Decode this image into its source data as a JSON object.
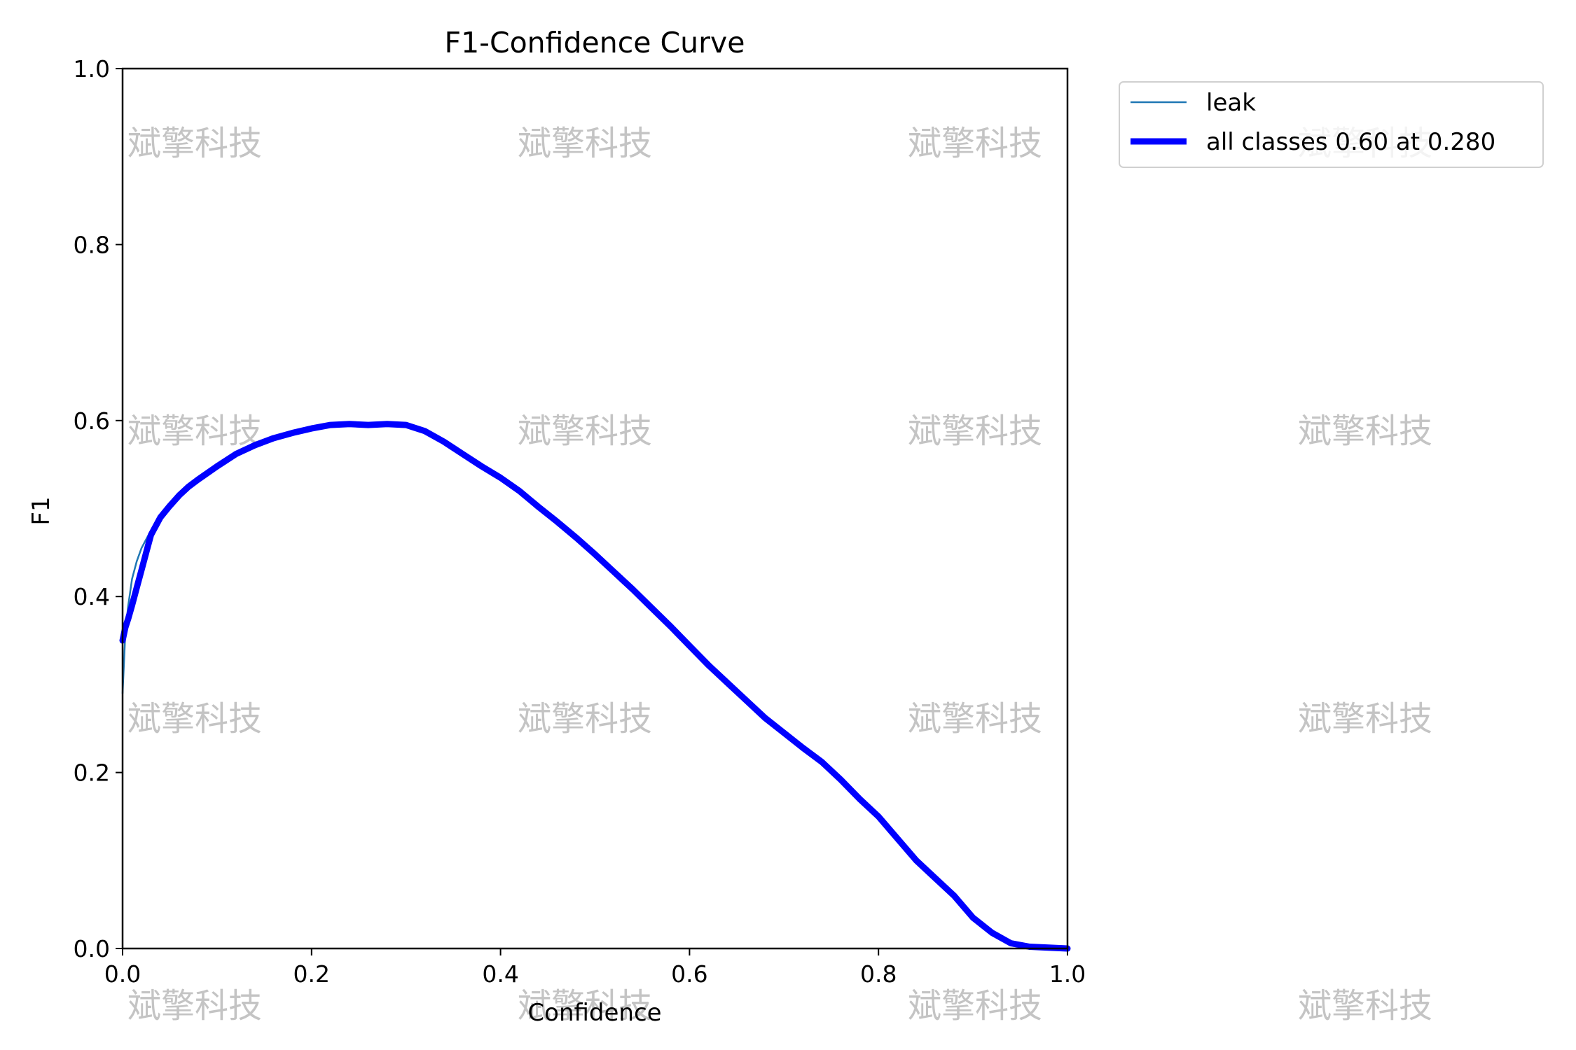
{
  "chart_data": {
    "type": "line",
    "title": "F1-Confidence Curve",
    "xlabel": "Confidence",
    "ylabel": "F1",
    "xlim": [
      0.0,
      1.0
    ],
    "ylim": [
      0.0,
      1.0
    ],
    "xticks": [
      "0.0",
      "0.2",
      "0.4",
      "0.6",
      "0.8",
      "1.0"
    ],
    "yticks": [
      "0.0",
      "0.2",
      "0.4",
      "0.6",
      "0.8",
      "1.0"
    ],
    "grid": false,
    "legend_position": "outside-top-right",
    "series": [
      {
        "name": "leak",
        "color": "#1f77b4",
        "x": [
          0.0,
          0.003,
          0.006,
          0.01,
          0.015,
          0.02,
          0.025,
          0.03,
          0.04,
          0.05,
          0.06,
          0.07,
          0.08,
          0.1,
          0.12,
          0.14,
          0.16,
          0.18,
          0.2,
          0.22,
          0.24,
          0.26,
          0.28,
          0.3,
          0.32,
          0.34,
          0.36,
          0.38,
          0.4,
          0.42,
          0.44,
          0.46,
          0.48,
          0.5,
          0.52,
          0.54,
          0.56,
          0.58,
          0.6,
          0.62,
          0.64,
          0.66,
          0.68,
          0.7,
          0.72,
          0.74,
          0.76,
          0.78,
          0.8,
          0.82,
          0.84,
          0.86,
          0.88,
          0.9,
          0.92,
          0.94,
          0.96,
          0.98,
          1.0
        ],
        "y": [
          0.29,
          0.36,
          0.39,
          0.42,
          0.44,
          0.455,
          0.465,
          0.475,
          0.49,
          0.505,
          0.515,
          0.525,
          0.533,
          0.548,
          0.562,
          0.572,
          0.58,
          0.586,
          0.591,
          0.595,
          0.596,
          0.595,
          0.596,
          0.595,
          0.588,
          0.576,
          0.562,
          0.548,
          0.535,
          0.52,
          0.502,
          0.485,
          0.467,
          0.448,
          0.428,
          0.408,
          0.387,
          0.366,
          0.344,
          0.322,
          0.302,
          0.282,
          0.262,
          0.245,
          0.228,
          0.212,
          0.192,
          0.17,
          0.15,
          0.125,
          0.1,
          0.08,
          0.06,
          0.035,
          0.018,
          0.006,
          0.002,
          0.001,
          0.0
        ]
      },
      {
        "name": "all classes 0.60 at 0.280",
        "color": "#0000ff",
        "x": [
          0.0,
          0.003,
          0.006,
          0.01,
          0.015,
          0.02,
          0.025,
          0.03,
          0.04,
          0.05,
          0.06,
          0.07,
          0.08,
          0.1,
          0.12,
          0.14,
          0.16,
          0.18,
          0.2,
          0.22,
          0.24,
          0.26,
          0.28,
          0.3,
          0.32,
          0.34,
          0.36,
          0.38,
          0.4,
          0.42,
          0.44,
          0.46,
          0.48,
          0.5,
          0.52,
          0.54,
          0.56,
          0.58,
          0.6,
          0.62,
          0.64,
          0.66,
          0.68,
          0.7,
          0.72,
          0.74,
          0.76,
          0.78,
          0.8,
          0.82,
          0.84,
          0.86,
          0.88,
          0.9,
          0.92,
          0.94,
          0.96,
          0.98,
          1.0
        ],
        "y": [
          0.35,
          0.365,
          0.375,
          0.39,
          0.41,
          0.43,
          0.45,
          0.47,
          0.49,
          0.503,
          0.515,
          0.525,
          0.533,
          0.548,
          0.562,
          0.572,
          0.58,
          0.586,
          0.591,
          0.595,
          0.596,
          0.595,
          0.596,
          0.595,
          0.588,
          0.576,
          0.562,
          0.548,
          0.535,
          0.52,
          0.502,
          0.485,
          0.467,
          0.448,
          0.428,
          0.408,
          0.387,
          0.366,
          0.344,
          0.322,
          0.302,
          0.282,
          0.262,
          0.245,
          0.228,
          0.212,
          0.192,
          0.17,
          0.15,
          0.125,
          0.1,
          0.08,
          0.06,
          0.035,
          0.018,
          0.006,
          0.002,
          0.001,
          0.0
        ]
      }
    ]
  },
  "watermark": {
    "text": "斌擎科技"
  }
}
